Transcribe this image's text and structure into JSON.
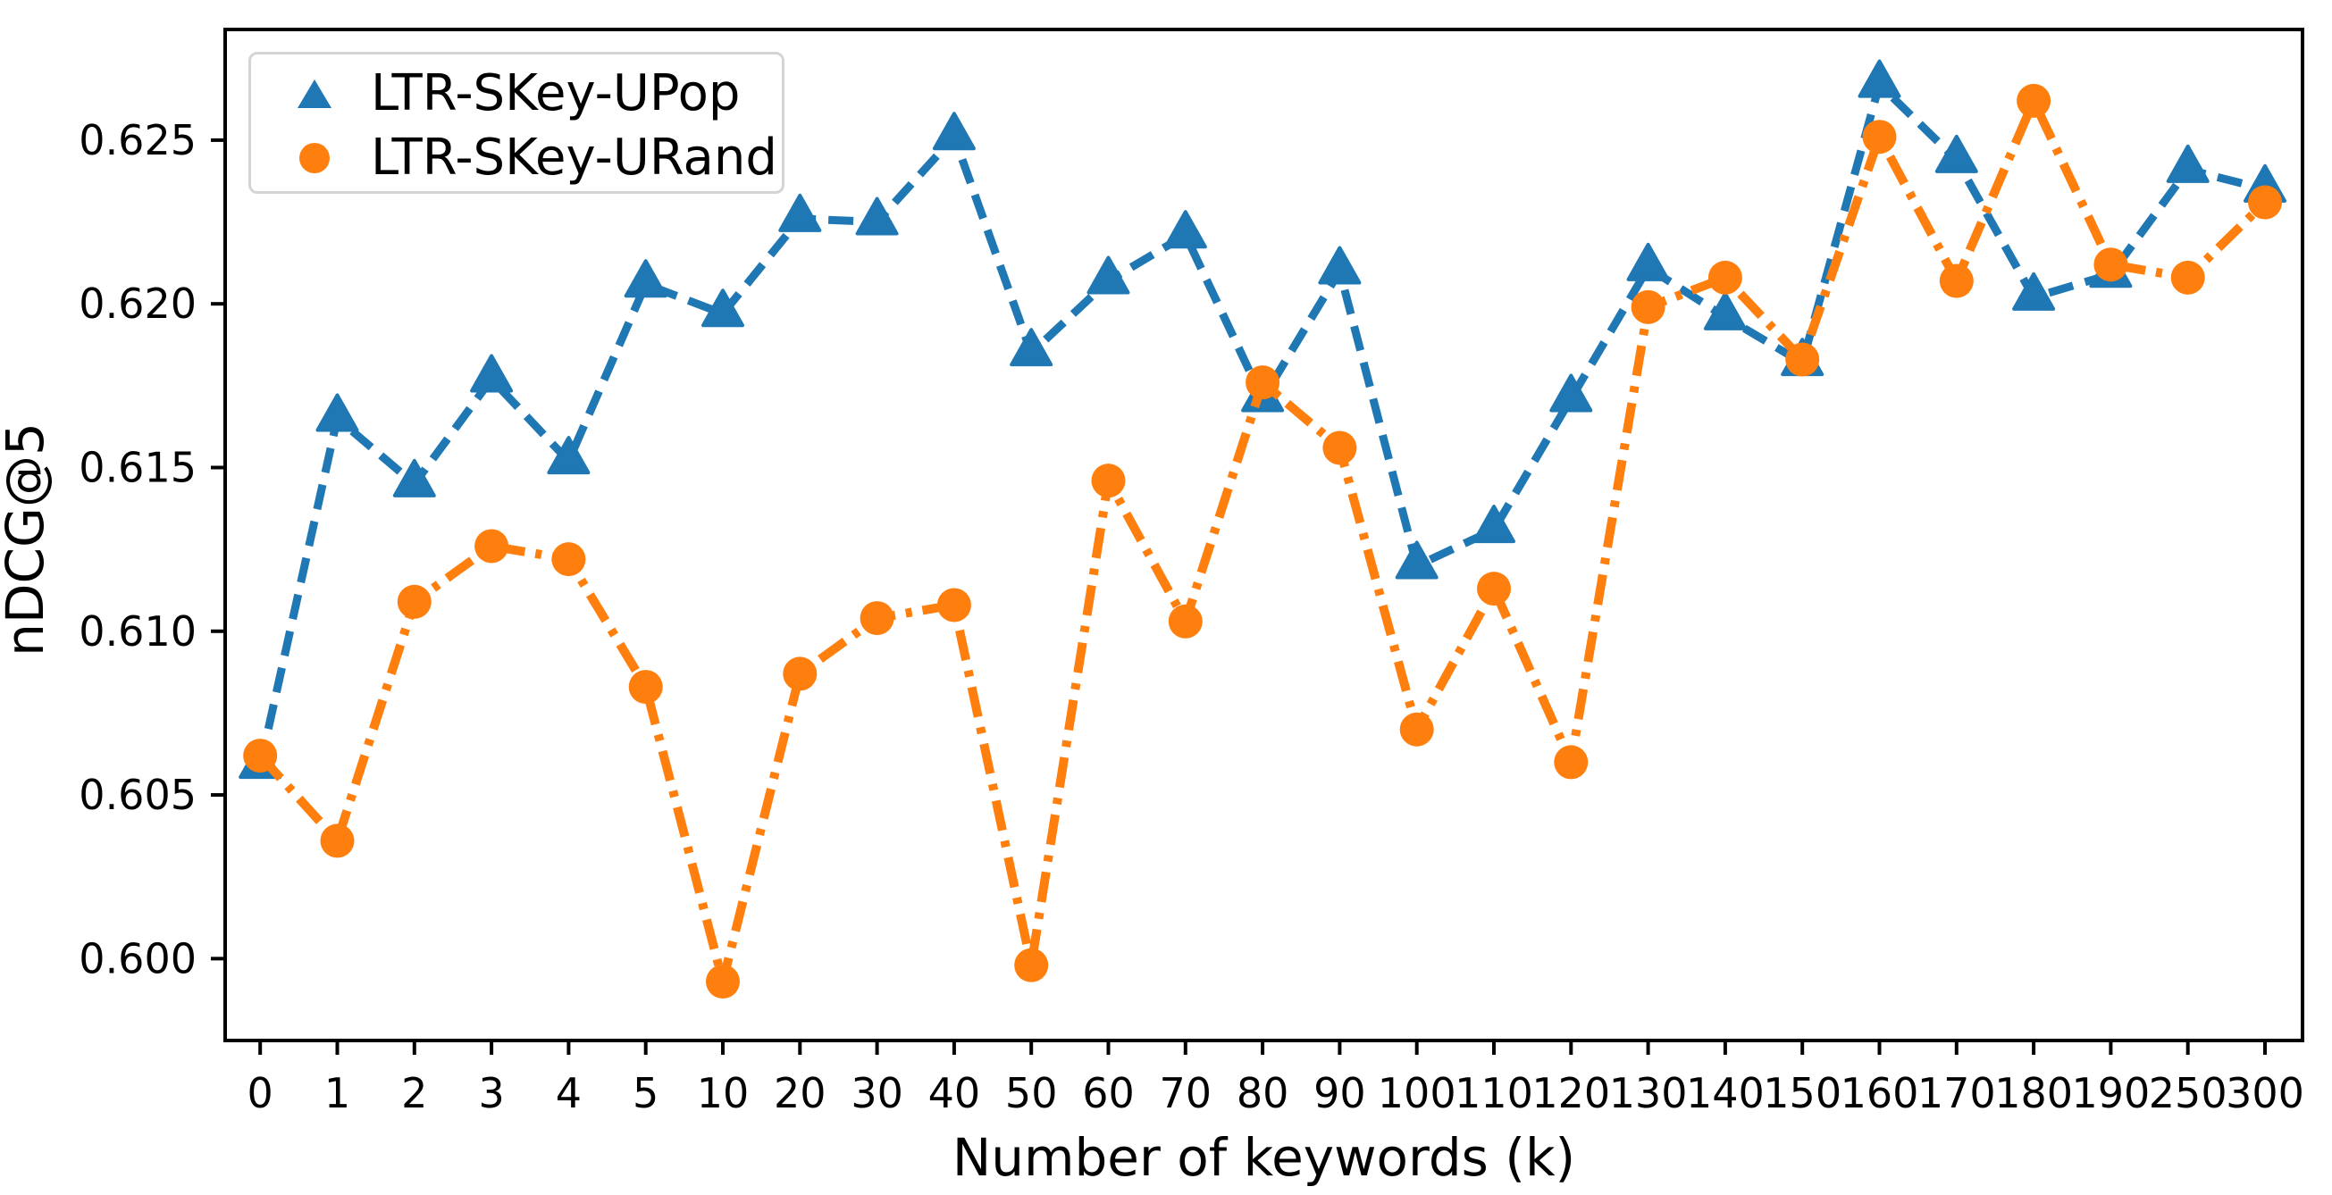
{
  "figure": {
    "background": "#ffffff",
    "text_color": "#000000",
    "spine_color": "#000000"
  },
  "chart_data": {
    "type": "line",
    "title": "",
    "xlabel": "Number of keywords (k)",
    "ylabel": "nDCG@5",
    "grid": false,
    "legend_position": "upper-left",
    "categories": [
      "0",
      "1",
      "2",
      "3",
      "4",
      "5",
      "10",
      "20",
      "30",
      "40",
      "50",
      "60",
      "70",
      "80",
      "90",
      "100",
      "110",
      "120",
      "130",
      "140",
      "150",
      "160",
      "170",
      "180",
      "190",
      "250",
      "300"
    ],
    "y_ticks": [
      "0.600",
      "0.605",
      "0.610",
      "0.615",
      "0.620",
      "0.625"
    ],
    "y_tick_values": [
      0.6,
      0.605,
      0.61,
      0.615,
      0.62,
      0.625
    ],
    "ylim": [
      0.5975,
      0.62838
    ],
    "series": [
      {
        "name": "LTR-SKey-UPop",
        "color": "#1f77b4",
        "marker": "triangle-up",
        "linestyle": "dashed",
        "values": [
          0.6059,
          0.6165,
          0.6145,
          0.6177,
          0.6152,
          0.6206,
          0.6197,
          0.6226,
          0.6225,
          0.6251,
          0.6185,
          0.6207,
          0.6221,
          0.6171,
          0.621,
          0.612,
          0.6131,
          0.6171,
          0.6211,
          0.6196,
          0.6182,
          0.6267,
          0.6244,
          0.6202,
          0.6209,
          0.6241,
          0.6235
        ]
      },
      {
        "name": "LTR-SKey-URand",
        "color": "#ff7f0e",
        "marker": "circle",
        "linestyle": "dashdot",
        "values": [
          0.6062,
          0.6036,
          0.6109,
          0.6126,
          0.6122,
          0.6083,
          0.5993,
          0.6087,
          0.6104,
          0.6108,
          0.5998,
          0.6146,
          0.6103,
          0.6176,
          0.6156,
          0.607,
          0.6113,
          0.606,
          0.6199,
          0.6208,
          0.6183,
          0.6251,
          0.6207,
          0.6262,
          0.6212,
          0.6208,
          0.6231
        ]
      }
    ]
  }
}
